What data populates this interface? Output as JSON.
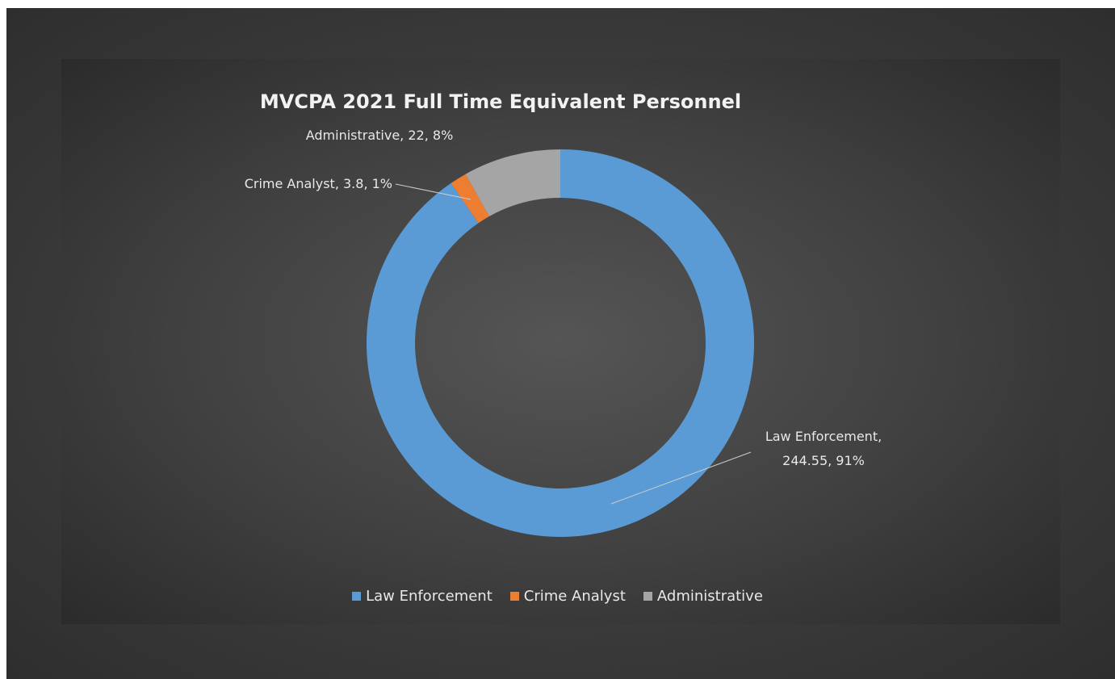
{
  "chart_data": {
    "type": "donut",
    "title": "MVCPA 2021 Full Time Equivalent Personnel",
    "categories": [
      "Law Enforcement",
      "Crime Analyst",
      "Administrative"
    ],
    "values": [
      244.55,
      3.8,
      22
    ],
    "value_labels": [
      "Law Enforcement, 244.55, 91%",
      "Crime Analyst, 3.8, 1%",
      "Administrative, 22, 8%"
    ],
    "colors": [
      "#5b9bd5",
      "#ed7d31",
      "#a5a5a5"
    ],
    "legend": "bottom"
  }
}
